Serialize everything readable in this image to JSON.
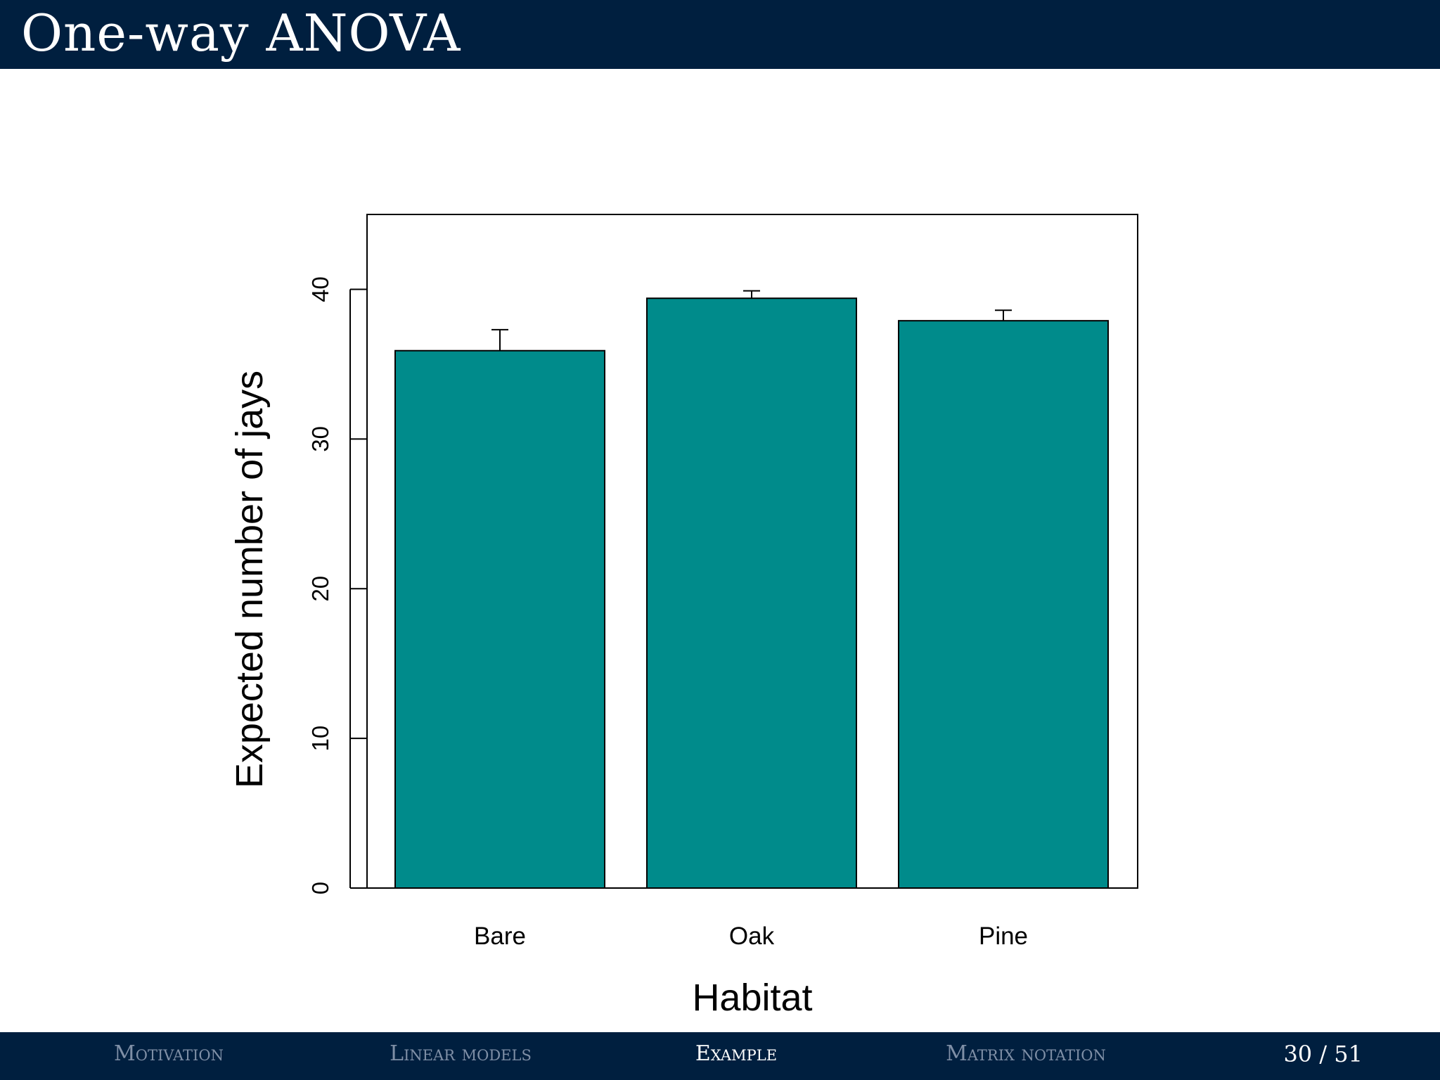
{
  "header": {
    "title": "One-way ANOVA"
  },
  "footer": {
    "nav": [
      {
        "label": "Motivation",
        "active": false
      },
      {
        "label": "Linear models",
        "active": false
      },
      {
        "label": "Example",
        "active": true
      },
      {
        "label": "Matrix notation",
        "active": false
      }
    ],
    "page": "30 / 51"
  },
  "chart_data": {
    "type": "bar",
    "categories": [
      "Bare",
      "Oak",
      "Pine"
    ],
    "values": [
      35.9,
      39.4,
      37.9
    ],
    "error_upper": [
      37.3,
      39.9,
      38.6
    ],
    "xlabel": "Habitat",
    "ylabel": "Expected number of jays",
    "ylim": [
      0,
      45
    ],
    "yticks": [
      0,
      10,
      20,
      30,
      40
    ],
    "bar_color": "#008b8b",
    "grid": false,
    "box": true
  }
}
